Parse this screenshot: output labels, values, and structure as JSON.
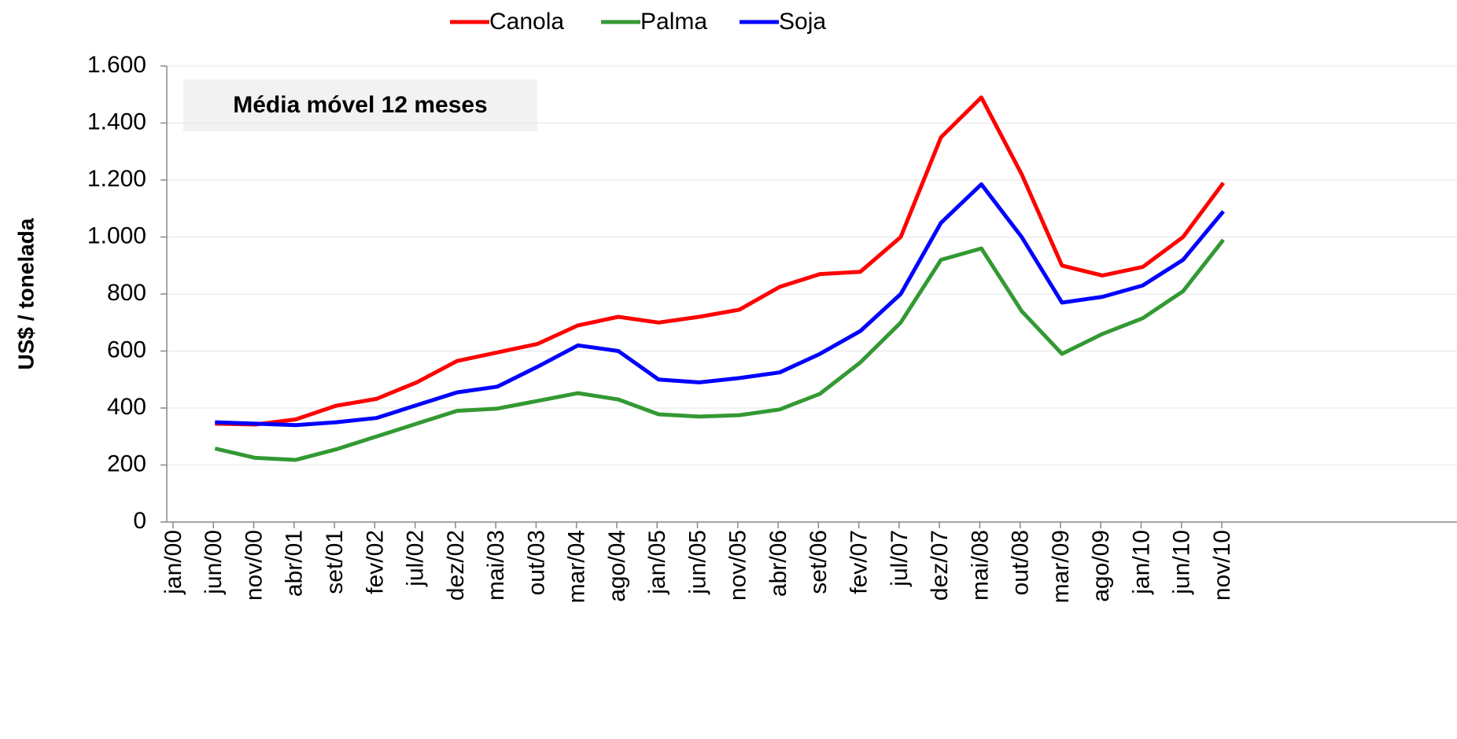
{
  "chart_data": {
    "type": "line",
    "annotation": "Média móvel 12 meses",
    "y_label": "US$ / tonelada",
    "categories": [
      "jan/00",
      "jun/00",
      "nov/00",
      "abr/01",
      "set/01",
      "fev/02",
      "jul/02",
      "dez/02",
      "mai/03",
      "out/03",
      "mar/04",
      "ago/04",
      "jan/05",
      "jun/05",
      "nov/05",
      "abr/06",
      "set/06",
      "fev/07",
      "jul/07",
      "dez/07",
      "mai/08",
      "out/08",
      "mar/09",
      "ago/09",
      "jan/10",
      "jun/10",
      "nov/10"
    ],
    "series": [
      {
        "name": "Canola",
        "color": "#ff0000",
        "values": [
          null,
          345,
          342,
          360,
          408,
          432,
          490,
          565,
          595,
          625,
          690,
          720,
          700,
          720,
          745,
          825,
          870,
          878,
          1000,
          1350,
          1490,
          1220,
          900,
          865,
          895,
          1000,
          1190
        ]
      },
      {
        "name": "Palma",
        "color": "#339933",
        "values": [
          null,
          258,
          225,
          218,
          255,
          300,
          345,
          390,
          398,
          425,
          452,
          430,
          378,
          370,
          375,
          395,
          450,
          560,
          700,
          920,
          960,
          740,
          590,
          660,
          715,
          810,
          990
        ]
      },
      {
        "name": "Soja",
        "color": "#0000ff",
        "values": [
          null,
          350,
          345,
          340,
          350,
          365,
          410,
          455,
          475,
          545,
          620,
          600,
          500,
          490,
          505,
          525,
          590,
          670,
          800,
          1050,
          1185,
          1000,
          770,
          790,
          830,
          920,
          1090
        ]
      }
    ],
    "ylim": [
      0,
      1600
    ],
    "yticks": [
      0,
      200,
      400,
      600,
      800,
      {
        "value": 1000,
        "label": "1.000"
      },
      {
        "value": 1200,
        "label": "1.200"
      },
      {
        "value": 1400,
        "label": "1.400"
      },
      {
        "value": 1600,
        "label": "1.600"
      }
    ],
    "grid": true,
    "legend": "top"
  }
}
